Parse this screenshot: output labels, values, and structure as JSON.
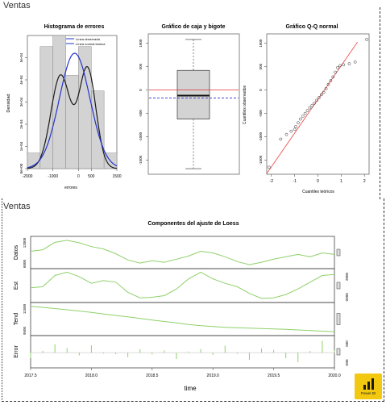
{
  "sections": {
    "top_title": "Ventas",
    "bottom_title": "Ventas"
  },
  "histogram": {
    "title": "Histograma de errores",
    "ylabel": "Densidad",
    "xlabel": "errores",
    "legend": [
      "Línea observada",
      "Línea normal teórica"
    ],
    "x_ticks": [
      "-2000",
      "-1000",
      "0",
      "500",
      "1500"
    ],
    "y_ticks": [
      "0e+00",
      "1e-04",
      "2e-04",
      "3e-04",
      "4e-04",
      "5e-04"
    ]
  },
  "boxplot": {
    "title": "Gráfico de caja y bigote",
    "y_ticks": [
      "1000",
      "500",
      "0",
      "-500",
      "-1000",
      "-1500"
    ]
  },
  "qqplot": {
    "title": "Gráfico Q-Q normal",
    "xlabel": "Cuantiles teóricos",
    "ylabel": "Cuantiles observados",
    "x_ticks": [
      "-2",
      "-1",
      "0",
      "1",
      "2"
    ],
    "y_ticks": [
      "1000",
      "500",
      "0",
      "-500",
      "-1000",
      "-1500"
    ]
  },
  "loess": {
    "title": "Componentes del ajuste de Loess",
    "xlabel": "time",
    "panels": [
      "Datos",
      "Est",
      "Tend",
      "Error"
    ],
    "left_ticks": [
      "6000",
      "12000",
      "",
      "",
      "9500",
      "11500",
      "",
      ""
    ],
    "right_ticks": [
      "",
      "",
      "-2000",
      "2000",
      "",
      "",
      "-500",
      "500"
    ],
    "x_ticks": [
      "2017.5",
      "2018.0",
      "2018.5",
      "2019.0",
      "2019.5",
      "2020.0"
    ]
  },
  "badge": {
    "label": "Power BI",
    "color": "#f2c811"
  },
  "colors": {
    "histogram_bars": "#d3d3d3",
    "observed_line": "#1a1a1a",
    "normal_line": "#2233cc",
    "box_fill": "#d3d3d3",
    "mean_line": "#e03030",
    "median_line": "#2233cc",
    "qq_line": "#ee5555",
    "loess_line": "#8fd16a"
  },
  "chart_data": [
    {
      "type": "bar",
      "title": "Histograma de errores",
      "xlabel": "errores",
      "ylabel": "Densidad",
      "bin_edges": [
        -2000,
        -1500,
        -1000,
        -500,
        0,
        500,
        1000,
        1500
      ],
      "values": [
        7e-05,
        0.00055,
        0.0006,
        0.00042,
        0.00055,
        0.00035,
        7e-05
      ],
      "xlim": [
        -2000,
        1500
      ],
      "ylim": [
        0,
        0.0006
      ],
      "series": [
        {
          "name": "Línea observada",
          "type": "line"
        },
        {
          "name": "Línea normal teórica",
          "type": "line"
        }
      ]
    },
    {
      "type": "box",
      "title": "Gráfico de caja y bigote",
      "whisker_low": -1680,
      "q1": -620,
      "median": -120,
      "q3": 420,
      "whisker_high": 1080,
      "mean": 0,
      "reference": -170,
      "ylim": [
        -1800,
        1200
      ]
    },
    {
      "type": "scatter",
      "title": "Gráfico Q-Q normal",
      "xlabel": "Cuantiles teóricos",
      "ylabel": "Cuantiles observados",
      "xlim": [
        -2.2,
        2.2
      ],
      "ylim": [
        -1800,
        1200
      ],
      "x": [
        -2.1,
        -1.6,
        -1.35,
        -1.15,
        -1.0,
        -0.95,
        -0.85,
        -0.75,
        -0.65,
        -0.55,
        -0.45,
        -0.35,
        -0.25,
        -0.15,
        -0.05,
        0.05,
        0.15,
        0.25,
        0.35,
        0.45,
        0.55,
        0.65,
        0.75,
        0.85,
        0.95,
        1.1,
        1.35,
        1.6,
        2.1
      ],
      "y": [
        -1650,
        -1050,
        -950,
        -880,
        -840,
        -780,
        -700,
        -620,
        -560,
        -500,
        -440,
        -380,
        -330,
        -280,
        -220,
        -160,
        -100,
        -50,
        30,
        120,
        200,
        280,
        380,
        480,
        520,
        540,
        560,
        600,
        1080
      ]
    },
    {
      "type": "line",
      "title": "Componentes del ajuste de Loess",
      "xlabel": "time",
      "xlim": [
        2017.5,
        2020.0
      ],
      "x": [
        2017.5,
        2017.6,
        2017.7,
        2017.8,
        2017.9,
        2018.0,
        2018.1,
        2018.2,
        2018.3,
        2018.4,
        2018.5,
        2018.6,
        2018.7,
        2018.8,
        2018.9,
        2019.0,
        2019.1,
        2019.2,
        2019.3,
        2019.4,
        2019.5,
        2019.6,
        2019.7,
        2019.8,
        2019.9,
        2020.0
      ],
      "series": [
        {
          "name": "Datos",
          "values": [
            9800,
            10200,
            12100,
            12600,
            12000,
            11000,
            10400,
            9200,
            7600,
            6800,
            7400,
            7000,
            7800,
            8600,
            9800,
            9400,
            8400,
            7200,
            6400,
            7000,
            7800,
            8400,
            9000,
            8400,
            9400,
            9000
          ]
        },
        {
          "name": "Est",
          "values": [
            -400,
            -200,
            1800,
            2400,
            1600,
            400,
            900,
            600,
            -1200,
            -2200,
            -2100,
            -1800,
            -600,
            1200,
            2400,
            1200,
            400,
            -200,
            -1400,
            -2300,
            -2200,
            -1600,
            -600,
            600,
            1800,
            2000
          ]
        },
        {
          "name": "Tend",
          "values": [
            11500,
            11420,
            11330,
            11240,
            11150,
            11040,
            10930,
            10820,
            10710,
            10600,
            10480,
            10370,
            10260,
            10150,
            10060,
            9990,
            9940,
            9900,
            9870,
            9840,
            9810,
            9780,
            9740,
            9700,
            9650,
            9600
          ]
        },
        {
          "name": "Error",
          "values": [
            -300,
            100,
            450,
            250,
            -150,
            400,
            -50,
            -80,
            -250,
            180,
            -100,
            120,
            -350,
            60,
            200,
            -120,
            380,
            -60,
            -400,
            220,
            150,
            -300,
            -520,
            90,
            650,
            120
          ]
        }
      ]
    }
  ]
}
